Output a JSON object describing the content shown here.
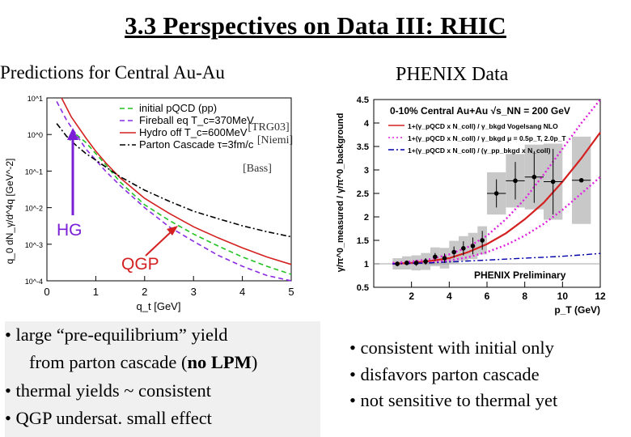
{
  "title": "3.3 Perspectives on Data III:   RHIC",
  "left_heading": "Predictions for Central Au-Au",
  "right_heading": "PHENIX Data",
  "left_bullets": {
    "b1_prefix": "• large “pre-equilibrium” yield",
    "b1_line2_pre": "from parton cascade (",
    "b1_line2_bold": "no LPM",
    "b1_line2_post": ")",
    "b2": "• thermal yields ~ consistent",
    "b3": "• QGP undersat. small effect"
  },
  "right_bullets": {
    "b1": "• consistent with initial only",
    "b2": "• disfavors parton cascade",
    "b3": "• not sensitive to thermal yet"
  },
  "colors": {
    "green": "#22c322",
    "purple": "#8a2be2",
    "red": "#d42020",
    "blue": "#0000aa",
    "magenta": "#e020e0",
    "grey_band": "#c8c8c8"
  },
  "chart_data": [
    {
      "type": "line",
      "title": "",
      "xlabel": "q_t [GeV]",
      "ylabel": "q_0 dN_γ/d^4q [GeV^-2]",
      "xlim": [
        0,
        5
      ],
      "ylim": [
        0.0001,
        10
      ],
      "yscale": "log",
      "x_ticks": [
        "0",
        "1",
        "2",
        "3",
        "4",
        "5"
      ],
      "y_ticks": [
        "10^1",
        "10^0",
        "10^-1",
        "10^-2",
        "10^-3",
        "10^-4"
      ],
      "legend": [
        {
          "label": "initial pQCD (pp)",
          "color": "#22c322",
          "style": "dashed",
          "ref": ""
        },
        {
          "label": "Fireball eq T_c=370MeV",
          "color": "#8a2be2",
          "style": "dashed",
          "ref": "[TRG03]"
        },
        {
          "label": "Hydro off T_c=600MeV",
          "color": "#d42020",
          "style": "solid",
          "ref": "[Niemi]"
        },
        {
          "label": "Parton Cascade  τ=3fm/c",
          "color": "#000000",
          "style": "dashdot",
          "ref": "[Bass]"
        }
      ],
      "legend_position": "top-right",
      "annotations": {
        "hg": "HG",
        "qgp": "QGP"
      },
      "series": [
        {
          "name": "initial pQCD (pp)",
          "x": [
            0.6,
            0.8,
            1.0,
            1.2,
            1.5,
            2.0,
            2.5,
            3.0,
            3.5,
            4.0,
            4.5,
            5.0
          ],
          "y": [
            1.0,
            0.6,
            0.3,
            0.15,
            0.05,
            0.012,
            0.0045,
            0.0019,
            0.0009,
            0.00045,
            0.00025,
            0.00015
          ]
        },
        {
          "name": "Fireball eq T_c=370MeV",
          "x": [
            0.2,
            0.4,
            0.6,
            0.8,
            1.0,
            1.2,
            1.5,
            2.0,
            2.5,
            3.0,
            3.5,
            4.0,
            4.5,
            5.0
          ],
          "y": [
            8.0,
            2.5,
            1.0,
            0.4,
            0.2,
            0.1,
            0.04,
            0.01,
            0.003,
            0.0012,
            0.0005,
            0.00025,
            0.00014,
            0.0001
          ]
        },
        {
          "name": "Hydro off T_c=600MeV",
          "x": [
            0.3,
            0.5,
            0.8,
            1.0,
            1.2,
            1.5,
            2.0,
            2.5,
            3.0,
            3.5,
            4.0,
            4.5,
            5.0
          ],
          "y": [
            10,
            3.0,
            0.8,
            0.35,
            0.17,
            0.065,
            0.018,
            0.007,
            0.003,
            0.0015,
            0.0008,
            0.00045,
            0.00028
          ]
        },
        {
          "name": "Parton Cascade  τ=3fm/c",
          "x": [
            0.2,
            0.4,
            0.6,
            0.8,
            1.0,
            1.2,
            1.5,
            2.0,
            2.5,
            3.0,
            3.5,
            4.0,
            4.5,
            5.0
          ],
          "y": [
            2.0,
            0.9,
            0.5,
            0.3,
            0.2,
            0.13,
            0.07,
            0.03,
            0.015,
            0.008,
            0.005,
            0.0032,
            0.0022,
            0.0016
          ]
        }
      ]
    },
    {
      "type": "scatter",
      "title": "0-10% Central  Au+Au  √s_NN = 200 GeV",
      "xlabel": "p_T (GeV)",
      "ylabel": "γ/π^0_measured / γ/π^0_background",
      "xlim": [
        0,
        12
      ],
      "ylim": [
        0.5,
        4.5
      ],
      "x_ticks": [
        "2",
        "4",
        "6",
        "8",
        "10",
        "12"
      ],
      "y_ticks": [
        "0.5",
        "1",
        "1.5",
        "2",
        "2.5",
        "3",
        "3.5",
        "4",
        "4.5"
      ],
      "legend": [
        {
          "label": "1+(γ_pQCD x N_coll) / γ_bkgd  Vogelsang NLO",
          "color": "#d42020",
          "style": "solid"
        },
        {
          "label": "1+(γ_pQCD x N_coll) / γ_bkgd  μ = 0.5p_T, 2.0p_T",
          "color": "#e020e0",
          "style": "dotted"
        },
        {
          "label": "1+(γ_pQCD x N_coll) / (γ_pp_bkgd x N_coll)",
          "color": "#0000aa",
          "style": "dashdot"
        }
      ],
      "label_preliminary": "PHENIX Preliminary",
      "data_points": {
        "x": [
          1.25,
          1.75,
          2.25,
          2.75,
          3.25,
          3.75,
          4.25,
          4.75,
          5.25,
          5.75,
          6.5,
          7.5,
          8.5,
          9.5,
          11.0
        ],
        "y": [
          1.0,
          1.02,
          1.02,
          1.05,
          1.15,
          1.12,
          1.25,
          1.33,
          1.38,
          1.5,
          2.5,
          2.77,
          2.85,
          2.75,
          2.78
        ],
        "err": [
          0.05,
          0.05,
          0.06,
          0.07,
          0.08,
          0.1,
          0.12,
          0.15,
          0.18,
          0.2,
          0.3,
          0.4,
          0.55,
          0.7,
          0.0
        ]
      },
      "curves": [
        {
          "name": "Vogelsang NLO",
          "x": [
            1,
            2,
            3,
            4,
            5,
            6,
            7,
            8,
            9,
            10,
            11,
            12
          ],
          "y": [
            1.0,
            1.02,
            1.06,
            1.12,
            1.25,
            1.42,
            1.65,
            1.95,
            2.3,
            2.75,
            3.25,
            3.8
          ]
        },
        {
          "name": "μ = 0.5p_T",
          "x": [
            1,
            2,
            3,
            4,
            5,
            6,
            7,
            8,
            9,
            10,
            11,
            12
          ],
          "y": [
            1.02,
            1.05,
            1.1,
            1.2,
            1.36,
            1.6,
            1.95,
            2.38,
            2.9,
            3.45,
            4.0,
            4.5
          ]
        },
        {
          "name": "μ = 2.0p_T",
          "x": [
            1,
            2,
            3,
            4,
            5,
            6,
            7,
            8,
            9,
            10,
            11,
            12
          ],
          "y": [
            1.0,
            1.01,
            1.03,
            1.07,
            1.14,
            1.25,
            1.4,
            1.6,
            1.85,
            2.15,
            2.5,
            2.85
          ]
        },
        {
          "name": "pp background",
          "x": [
            1,
            2,
            3,
            4,
            5,
            6,
            7,
            8,
            9,
            10,
            11,
            12
          ],
          "y": [
            1.0,
            1.01,
            1.02,
            1.04,
            1.06,
            1.08,
            1.1,
            1.12,
            1.14,
            1.16,
            1.19,
            1.22
          ]
        }
      ]
    }
  ]
}
